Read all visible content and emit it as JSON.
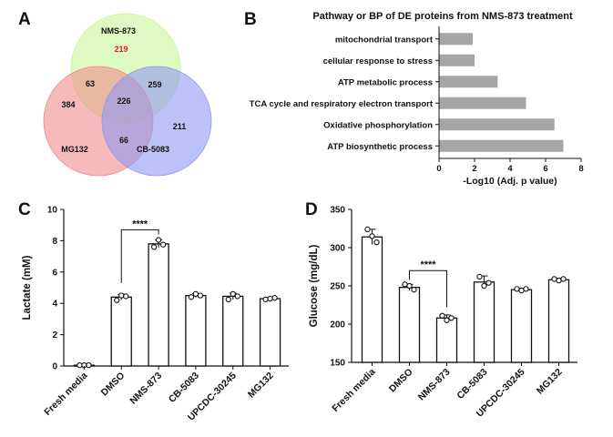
{
  "chart_data": [
    {
      "panel": "A",
      "type": "venn",
      "sets": [
        "NMS-873",
        "MG132",
        "CB-5083"
      ],
      "colors": {
        "NMS-873": "#c9f59a",
        "MG132": "#f08c8c",
        "CB-5083": "#8f9af2"
      },
      "regions": [
        {
          "sets": [
            "NMS-873"
          ],
          "value": "219",
          "highlight": true
        },
        {
          "sets": [
            "MG132"
          ],
          "value": "384"
        },
        {
          "sets": [
            "CB-5083"
          ],
          "value": "211"
        },
        {
          "sets": [
            "NMS-873",
            "MG132"
          ],
          "value": "63"
        },
        {
          "sets": [
            "NMS-873",
            "CB-5083"
          ],
          "value": "259"
        },
        {
          "sets": [
            "MG132",
            "CB-5083"
          ],
          "value": "66"
        },
        {
          "sets": [
            "NMS-873",
            "MG132",
            "CB-5083"
          ],
          "value": "226"
        }
      ]
    },
    {
      "panel": "B",
      "type": "bar",
      "orientation": "horizontal",
      "title": "Pathway or BP of DE proteins from NMS-873 treatment",
      "xlabel": "-Log10 (Adj. p value)",
      "xlim": [
        0,
        8
      ],
      "xticks": [
        "0",
        "2",
        "4",
        "6",
        "8"
      ],
      "categories": [
        "mitochondrial transport",
        "cellular response to stress",
        "ATP metabolic process",
        "TCA cycle and respiratory electron transport",
        "Oxidative phosphorylation",
        "ATP biosynthetic process"
      ],
      "values": [
        1.9,
        2.0,
        3.3,
        4.9,
        6.5,
        7.0
      ],
      "color": "#a6a6a6"
    },
    {
      "panel": "C",
      "type": "bar",
      "ylabel": "Lactate (mM)",
      "ylim": [
        0,
        10
      ],
      "yticks": [
        "0",
        "2",
        "4",
        "6",
        "8",
        "10"
      ],
      "categories": [
        "Fresh media",
        "DMSO",
        "NMS-873",
        "CB-5083",
        "UPCDC-30245",
        "MG132"
      ],
      "values": [
        0.05,
        4.4,
        7.8,
        4.5,
        4.45,
        4.3
      ],
      "errors": [
        0.02,
        0.18,
        0.25,
        0.12,
        0.2,
        0.07
      ],
      "points": [
        [
          0.05,
          0.05,
          0.05
        ],
        [
          4.2,
          4.5,
          4.45
        ],
        [
          7.6,
          8.05,
          7.75
        ],
        [
          4.4,
          4.6,
          4.5
        ],
        [
          4.25,
          4.6,
          4.45
        ],
        [
          4.25,
          4.3,
          4.35
        ]
      ],
      "significance": {
        "from": "DMSO",
        "to": "NMS-873",
        "label": "****"
      }
    },
    {
      "panel": "D",
      "type": "bar",
      "ylabel": "Glucose (mg/dL)",
      "ylim": [
        150,
        350
      ],
      "yticks": [
        "150",
        "200",
        "250",
        "300",
        "350"
      ],
      "categories": [
        "Fresh media",
        "DMSO",
        "NMS-873",
        "CB-5083",
        "UPCDC-30245",
        "MG132"
      ],
      "values": [
        314,
        248,
        208,
        255,
        245,
        258
      ],
      "errors": [
        10,
        4,
        4,
        8,
        2,
        2
      ],
      "points": [
        [
          324,
          315,
          307
        ],
        [
          252,
          250,
          245
        ],
        [
          211,
          205,
          208
        ],
        [
          262,
          250,
          254
        ],
        [
          246,
          244,
          246
        ],
        [
          259,
          257,
          259
        ]
      ],
      "significance": {
        "from": "DMSO",
        "to": "NMS-873",
        "label": "****"
      }
    }
  ],
  "panel_letters": [
    "A",
    "B",
    "C",
    "D"
  ]
}
